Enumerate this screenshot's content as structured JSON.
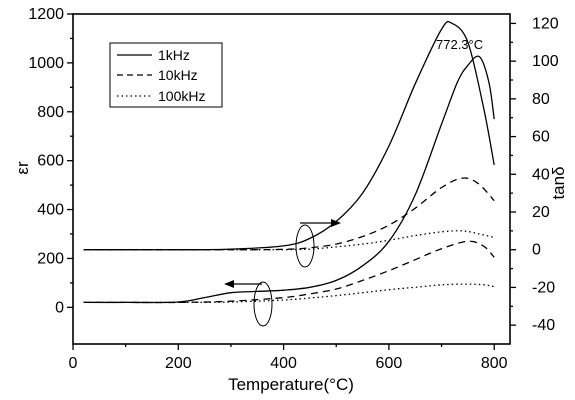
{
  "chart_data": {
    "type": "line",
    "title": "",
    "xlabel": "Temperature(°C)",
    "ylabel_left": "εr",
    "ylabel_right": "tanδ",
    "xlim": [
      0,
      830
    ],
    "ylim_left": [
      -150,
      1200
    ],
    "ylim_right": [
      -50,
      125
    ],
    "x_ticks": [
      0,
      200,
      400,
      600,
      800
    ],
    "y_left_ticks": [
      0,
      200,
      400,
      600,
      800,
      1000,
      1200
    ],
    "y_right_ticks": [
      -40,
      -20,
      0,
      20,
      40,
      60,
      80,
      100,
      120
    ],
    "grid": false,
    "legend_position": "top-left",
    "legend": [
      {
        "label": "1kHz",
        "style": "solid"
      },
      {
        "label": "10kHz",
        "style": "dashed"
      },
      {
        "label": "100kHz",
        "style": "dotted"
      }
    ],
    "annotation": "772.3°C",
    "series": [
      {
        "name": "1kHz",
        "axis": "left",
        "style": "solid",
        "x": [
          20,
          100,
          200,
          250,
          300,
          350,
          400,
          450,
          500,
          550,
          600,
          650,
          700,
          730,
          750,
          772,
          790,
          800
        ],
        "y": [
          20,
          20,
          22,
          40,
          60,
          65,
          70,
          82,
          110,
          170,
          270,
          460,
          750,
          920,
          990,
          1025,
          920,
          770
        ]
      },
      {
        "name": "10kHz",
        "axis": "left",
        "style": "dashed",
        "x": [
          20,
          100,
          200,
          300,
          400,
          450,
          500,
          550,
          600,
          650,
          700,
          750,
          780,
          800
        ],
        "y": [
          20,
          20,
          20,
          25,
          40,
          55,
          75,
          110,
          150,
          195,
          240,
          270,
          250,
          205
        ]
      },
      {
        "name": "100kHz",
        "axis": "left",
        "style": "dotted",
        "x": [
          20,
          100,
          200,
          300,
          400,
          450,
          500,
          550,
          600,
          650,
          700,
          750,
          780,
          800
        ],
        "y": [
          20,
          20,
          20,
          22,
          30,
          38,
          48,
          60,
          72,
          82,
          92,
          95,
          92,
          85
        ]
      },
      {
        "name": "1kHz",
        "axis": "right",
        "style": "solid",
        "x": [
          20,
          100,
          200,
          300,
          400,
          450,
          500,
          550,
          600,
          650,
          700,
          720,
          750,
          780,
          800
        ],
        "y": [
          0,
          0,
          0,
          0.3,
          2,
          6,
          15,
          30,
          55,
          88,
          117,
          120,
          110,
          75,
          45
        ]
      },
      {
        "name": "10kHz",
        "axis": "right",
        "style": "dashed",
        "x": [
          20,
          100,
          200,
          300,
          400,
          450,
          500,
          550,
          600,
          650,
          700,
          740,
          770,
          800
        ],
        "y": [
          0,
          0,
          0,
          0,
          0.2,
          1,
          3,
          7,
          13,
          22,
          33,
          38,
          35,
          26
        ]
      },
      {
        "name": "100kHz",
        "axis": "right",
        "style": "dotted",
        "x": [
          20,
          100,
          200,
          300,
          400,
          450,
          500,
          550,
          600,
          650,
          700,
          740,
          770,
          800
        ],
        "y": [
          0,
          0,
          0,
          0,
          0,
          0.3,
          1.5,
          3,
          5,
          7.5,
          9.5,
          10,
          8.5,
          6.5
        ]
      }
    ]
  }
}
